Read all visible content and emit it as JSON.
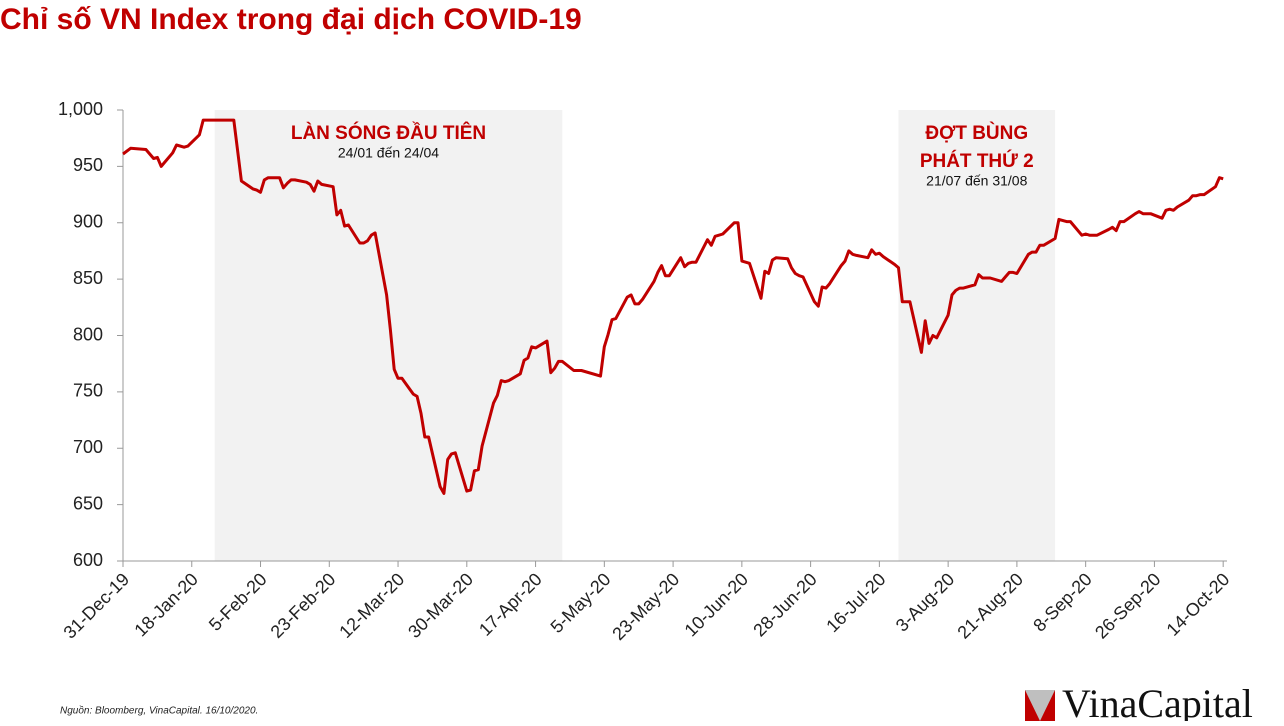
{
  "chart_data": {
    "type": "line",
    "title": "Chỉ số VN Index trong đại dịch COVID-19",
    "source": "Nguồn: Bloomberg, VinaCapital. 16/10/2020.",
    "logo": "VinaCapital",
    "color": "#c00000",
    "shade_color": "#f2f2f2",
    "xlim": [
      "2019-12-31",
      "2020-10-15"
    ],
    "ylim": [
      600,
      1000
    ],
    "yticks": [
      600,
      650,
      700,
      750,
      800,
      850,
      900,
      950,
      {
        "value": 1000,
        "label": "1,000"
      }
    ],
    "xticks": [
      {
        "value": "2019-12-31",
        "label": "31-Dec-19"
      },
      {
        "value": "2020-01-18",
        "label": "18-Jan-20"
      },
      {
        "value": "2020-02-05",
        "label": "5-Feb-20"
      },
      {
        "value": "2020-02-23",
        "label": "23-Feb-20"
      },
      {
        "value": "2020-03-12",
        "label": "12-Mar-20"
      },
      {
        "value": "2020-03-30",
        "label": "30-Mar-20"
      },
      {
        "value": "2020-04-17",
        "label": "17-Apr-20"
      },
      {
        "value": "2020-05-05",
        "label": "5-May-20"
      },
      {
        "value": "2020-05-23",
        "label": "23-May-20"
      },
      {
        "value": "2020-06-10",
        "label": "10-Jun-20"
      },
      {
        "value": "2020-06-28",
        "label": "28-Jun-20"
      },
      {
        "value": "2020-07-16",
        "label": "16-Jul-20"
      },
      {
        "value": "2020-08-03",
        "label": "3-Aug-20"
      },
      {
        "value": "2020-08-21",
        "label": "21-Aug-20"
      },
      {
        "value": "2020-09-08",
        "label": "8-Sep-20"
      },
      {
        "value": "2020-09-26",
        "label": "26-Sep-20"
      },
      {
        "value": "2020-10-14",
        "label": "14-Oct-20"
      }
    ],
    "periods": [
      {
        "start": "2020-01-24",
        "end": "2020-04-24",
        "lines": [
          "LÀN SÓNG ĐẦU TIÊN"
        ],
        "sublabel": "24/01 đến 24/04"
      },
      {
        "start": "2020-07-21",
        "end": "2020-08-31",
        "lines": [
          "ĐỢT BÙNG",
          "PHÁT THỨ 2"
        ],
        "sublabel": "21/07 đến 31/08"
      }
    ],
    "x": [
      "2019-12-31",
      "2020-01-02",
      "2020-01-06",
      "2020-01-08",
      "2020-01-09",
      "2020-01-10",
      "2020-01-13",
      "2020-01-14",
      "2020-01-16",
      "2020-01-17",
      "2020-01-20",
      "2020-01-21",
      "2020-01-29",
      "2020-01-31",
      "2020-02-03",
      "2020-02-04",
      "2020-02-05",
      "2020-02-06",
      "2020-02-07",
      "2020-02-10",
      "2020-02-11",
      "2020-02-12",
      "2020-02-13",
      "2020-02-14",
      "2020-02-17",
      "2020-02-18",
      "2020-02-19",
      "2020-02-20",
      "2020-02-21",
      "2020-02-24",
      "2020-02-25",
      "2020-02-26",
      "2020-02-27",
      "2020-02-28",
      "2020-03-02",
      "2020-03-03",
      "2020-03-04",
      "2020-03-05",
      "2020-03-06",
      "2020-03-09",
      "2020-03-10",
      "2020-03-11",
      "2020-03-12",
      "2020-03-13",
      "2020-03-16",
      "2020-03-17",
      "2020-03-18",
      "2020-03-19",
      "2020-03-20",
      "2020-03-23",
      "2020-03-24",
      "2020-03-25",
      "2020-03-26",
      "2020-03-27",
      "2020-03-30",
      "2020-03-31",
      "2020-04-01",
      "2020-04-02",
      "2020-04-03",
      "2020-04-06",
      "2020-04-07",
      "2020-04-08",
      "2020-04-09",
      "2020-04-10",
      "2020-04-13",
      "2020-04-14",
      "2020-04-15",
      "2020-04-16",
      "2020-04-17",
      "2020-04-20",
      "2020-04-21",
      "2020-04-22",
      "2020-04-23",
      "2020-04-24",
      "2020-04-27",
      "2020-04-28",
      "2020-04-29",
      "2020-05-04",
      "2020-05-05",
      "2020-05-06",
      "2020-05-07",
      "2020-05-08",
      "2020-05-11",
      "2020-05-12",
      "2020-05-13",
      "2020-05-14",
      "2020-05-15",
      "2020-05-18",
      "2020-05-19",
      "2020-05-20",
      "2020-05-21",
      "2020-05-22",
      "2020-05-25",
      "2020-05-26",
      "2020-05-27",
      "2020-05-28",
      "2020-05-29",
      "2020-06-01",
      "2020-06-02",
      "2020-06-03",
      "2020-06-04",
      "2020-06-05",
      "2020-06-08",
      "2020-06-09",
      "2020-06-10",
      "2020-06-11",
      "2020-06-12",
      "2020-06-15",
      "2020-06-16",
      "2020-06-17",
      "2020-06-18",
      "2020-06-19",
      "2020-06-22",
      "2020-06-23",
      "2020-06-24",
      "2020-06-25",
      "2020-06-26",
      "2020-06-29",
      "2020-06-30",
      "2020-07-01",
      "2020-07-02",
      "2020-07-03",
      "2020-07-06",
      "2020-07-07",
      "2020-07-08",
      "2020-07-09",
      "2020-07-10",
      "2020-07-13",
      "2020-07-14",
      "2020-07-15",
      "2020-07-16",
      "2020-07-17",
      "2020-07-20",
      "2020-07-21",
      "2020-07-22",
      "2020-07-23",
      "2020-07-24",
      "2020-07-27",
      "2020-07-28",
      "2020-07-29",
      "2020-07-30",
      "2020-07-31",
      "2020-08-03",
      "2020-08-04",
      "2020-08-05",
      "2020-08-06",
      "2020-08-07",
      "2020-08-10",
      "2020-08-11",
      "2020-08-12",
      "2020-08-13",
      "2020-08-14",
      "2020-08-17",
      "2020-08-18",
      "2020-08-19",
      "2020-08-20",
      "2020-08-21",
      "2020-08-24",
      "2020-08-25",
      "2020-08-26",
      "2020-08-27",
      "2020-08-28",
      "2020-08-31",
      "2020-09-01",
      "2020-09-03",
      "2020-09-04",
      "2020-09-07",
      "2020-09-08",
      "2020-09-09",
      "2020-09-10",
      "2020-09-11",
      "2020-09-14",
      "2020-09-15",
      "2020-09-16",
      "2020-09-17",
      "2020-09-18",
      "2020-09-21",
      "2020-09-22",
      "2020-09-23",
      "2020-09-24",
      "2020-09-25",
      "2020-09-28",
      "2020-09-29",
      "2020-09-30",
      "2020-10-01",
      "2020-10-02",
      "2020-10-05",
      "2020-10-06",
      "2020-10-07",
      "2020-10-08",
      "2020-10-09",
      "2020-10-12",
      "2020-10-13",
      "2020-10-14"
    ],
    "values": [
      961,
      966,
      965,
      957,
      958,
      950,
      962,
      969,
      967,
      968,
      978,
      991,
      991,
      937,
      930,
      929,
      927,
      938,
      940,
      940,
      931,
      935,
      938,
      938,
      936,
      934,
      928,
      937,
      934,
      932,
      907,
      911,
      897,
      898,
      882,
      882,
      884,
      889,
      891,
      836,
      805,
      770,
      762,
      762,
      748,
      746,
      731,
      710,
      710,
      666,
      660,
      690,
      695,
      696,
      662,
      663,
      680,
      681,
      702,
      740,
      747,
      760,
      759,
      760,
      766,
      778,
      780,
      790,
      789,
      795,
      767,
      771,
      777,
      777,
      769,
      769,
      769,
      764,
      790,
      801,
      814,
      815,
      834,
      836,
      828,
      828,
      832,
      848,
      856,
      862,
      853,
      853,
      869,
      861,
      864,
      865,
      865,
      885,
      880,
      888,
      889,
      890,
      900,
      900,
      866,
      865,
      864,
      833,
      857,
      855,
      867,
      869,
      868,
      860,
      855,
      853,
      852,
      830,
      826,
      843,
      842,
      846,
      862,
      866,
      875,
      872,
      871,
      869,
      876,
      872,
      873,
      870,
      863,
      860,
      830,
      830,
      830,
      785,
      813,
      793,
      800,
      798,
      818,
      836,
      840,
      842,
      842,
      845,
      854,
      851,
      851,
      851,
      848,
      852,
      856,
      856,
      855,
      872,
      874,
      874,
      880,
      880,
      886,
      903,
      901,
      901,
      889,
      890,
      889,
      889,
      889,
      894,
      896,
      893,
      901,
      901,
      908,
      910,
      908,
      908,
      908,
      904,
      911,
      912,
      911,
      914,
      920,
      924,
      924,
      925,
      925,
      932,
      940,
      939
    ]
  }
}
